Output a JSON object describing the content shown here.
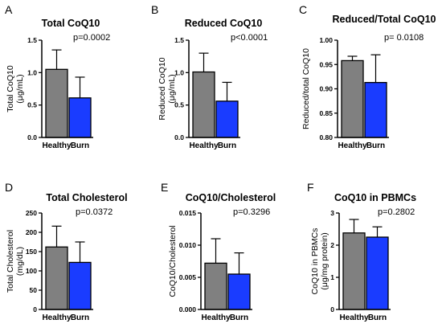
{
  "colors": {
    "healthy": "#808080",
    "burn": "#1a3cff",
    "axis": "#000000"
  },
  "chart_data": [
    {
      "panel_letter": "A",
      "type": "bar",
      "title": "Total CoQ10",
      "ylabel_lines": [
        "Total CoQ10",
        "(μg/mL)"
      ],
      "categories": [
        "Healthy",
        "Burn"
      ],
      "values": [
        1.05,
        0.61
      ],
      "errors": [
        0.3,
        0.32
      ],
      "ylim": [
        0,
        1.5
      ],
      "yticks": [
        "0.0",
        "0.5",
        "1.0",
        "1.5"
      ],
      "pvalue": "p=0.0002"
    },
    {
      "panel_letter": "B",
      "type": "bar",
      "title": "Reduced CoQ10",
      "ylabel_lines": [
        "Reduced CoQ10",
        "(μg/mL)"
      ],
      "categories": [
        "Healthy",
        "Burn"
      ],
      "values": [
        1.01,
        0.56
      ],
      "errors": [
        0.29,
        0.29
      ],
      "ylim": [
        0,
        1.5
      ],
      "yticks": [
        "0.0",
        "0.5",
        "1.0",
        "1.5"
      ],
      "pvalue": "p<0.0001"
    },
    {
      "panel_letter": "C",
      "type": "bar",
      "title": "Reduced/Total CoQ10",
      "ylabel_lines": [
        "Reduced/total CoQ10"
      ],
      "categories": [
        "Healthy",
        "Burn"
      ],
      "values": [
        0.958,
        0.913
      ],
      "errors": [
        0.009,
        0.057
      ],
      "ylim": [
        0.8,
        1.0
      ],
      "yticks": [
        "0.80",
        "0.85",
        "0.90",
        "0.95",
        "1.00"
      ],
      "pvalue": "p= 0.0108"
    },
    {
      "panel_letter": "D",
      "type": "bar",
      "title": "Total Cholesterol",
      "ylabel_lines": [
        "Total Cholesterol",
        "(mg/dL)"
      ],
      "categories": [
        "Healthy",
        "Burn"
      ],
      "values": [
        162,
        122
      ],
      "errors": [
        54,
        53
      ],
      "ylim": [
        0,
        250
      ],
      "yticks": [
        "0",
        "50",
        "100",
        "150",
        "200",
        "250"
      ],
      "pvalue": "p=0.0372"
    },
    {
      "panel_letter": "E",
      "type": "bar",
      "title": "CoQ10/Cholesterol",
      "ylabel_lines": [
        "CoQ10/Cholesterol"
      ],
      "categories": [
        "Healthy",
        "Burn"
      ],
      "values": [
        0.0072,
        0.0055
      ],
      "errors": [
        0.0038,
        0.0033
      ],
      "ylim": [
        0,
        0.015
      ],
      "yticks": [
        "0.000",
        "0.005",
        "0.010",
        "0.015"
      ],
      "pvalue": "p=0.3296"
    },
    {
      "panel_letter": "F",
      "type": "bar",
      "title": "CoQ10 in PBMCs",
      "ylabel_lines": [
        "CoQ10 in PBMCs",
        "(μg/mg protein)"
      ],
      "categories": [
        "Healthy",
        "Burn"
      ],
      "values": [
        2.38,
        2.25
      ],
      "errors": [
        0.42,
        0.32
      ],
      "ylim": [
        0,
        3
      ],
      "yticks": [
        "0",
        "1",
        "2",
        "3"
      ],
      "pvalue": "p=0.2802"
    }
  ]
}
